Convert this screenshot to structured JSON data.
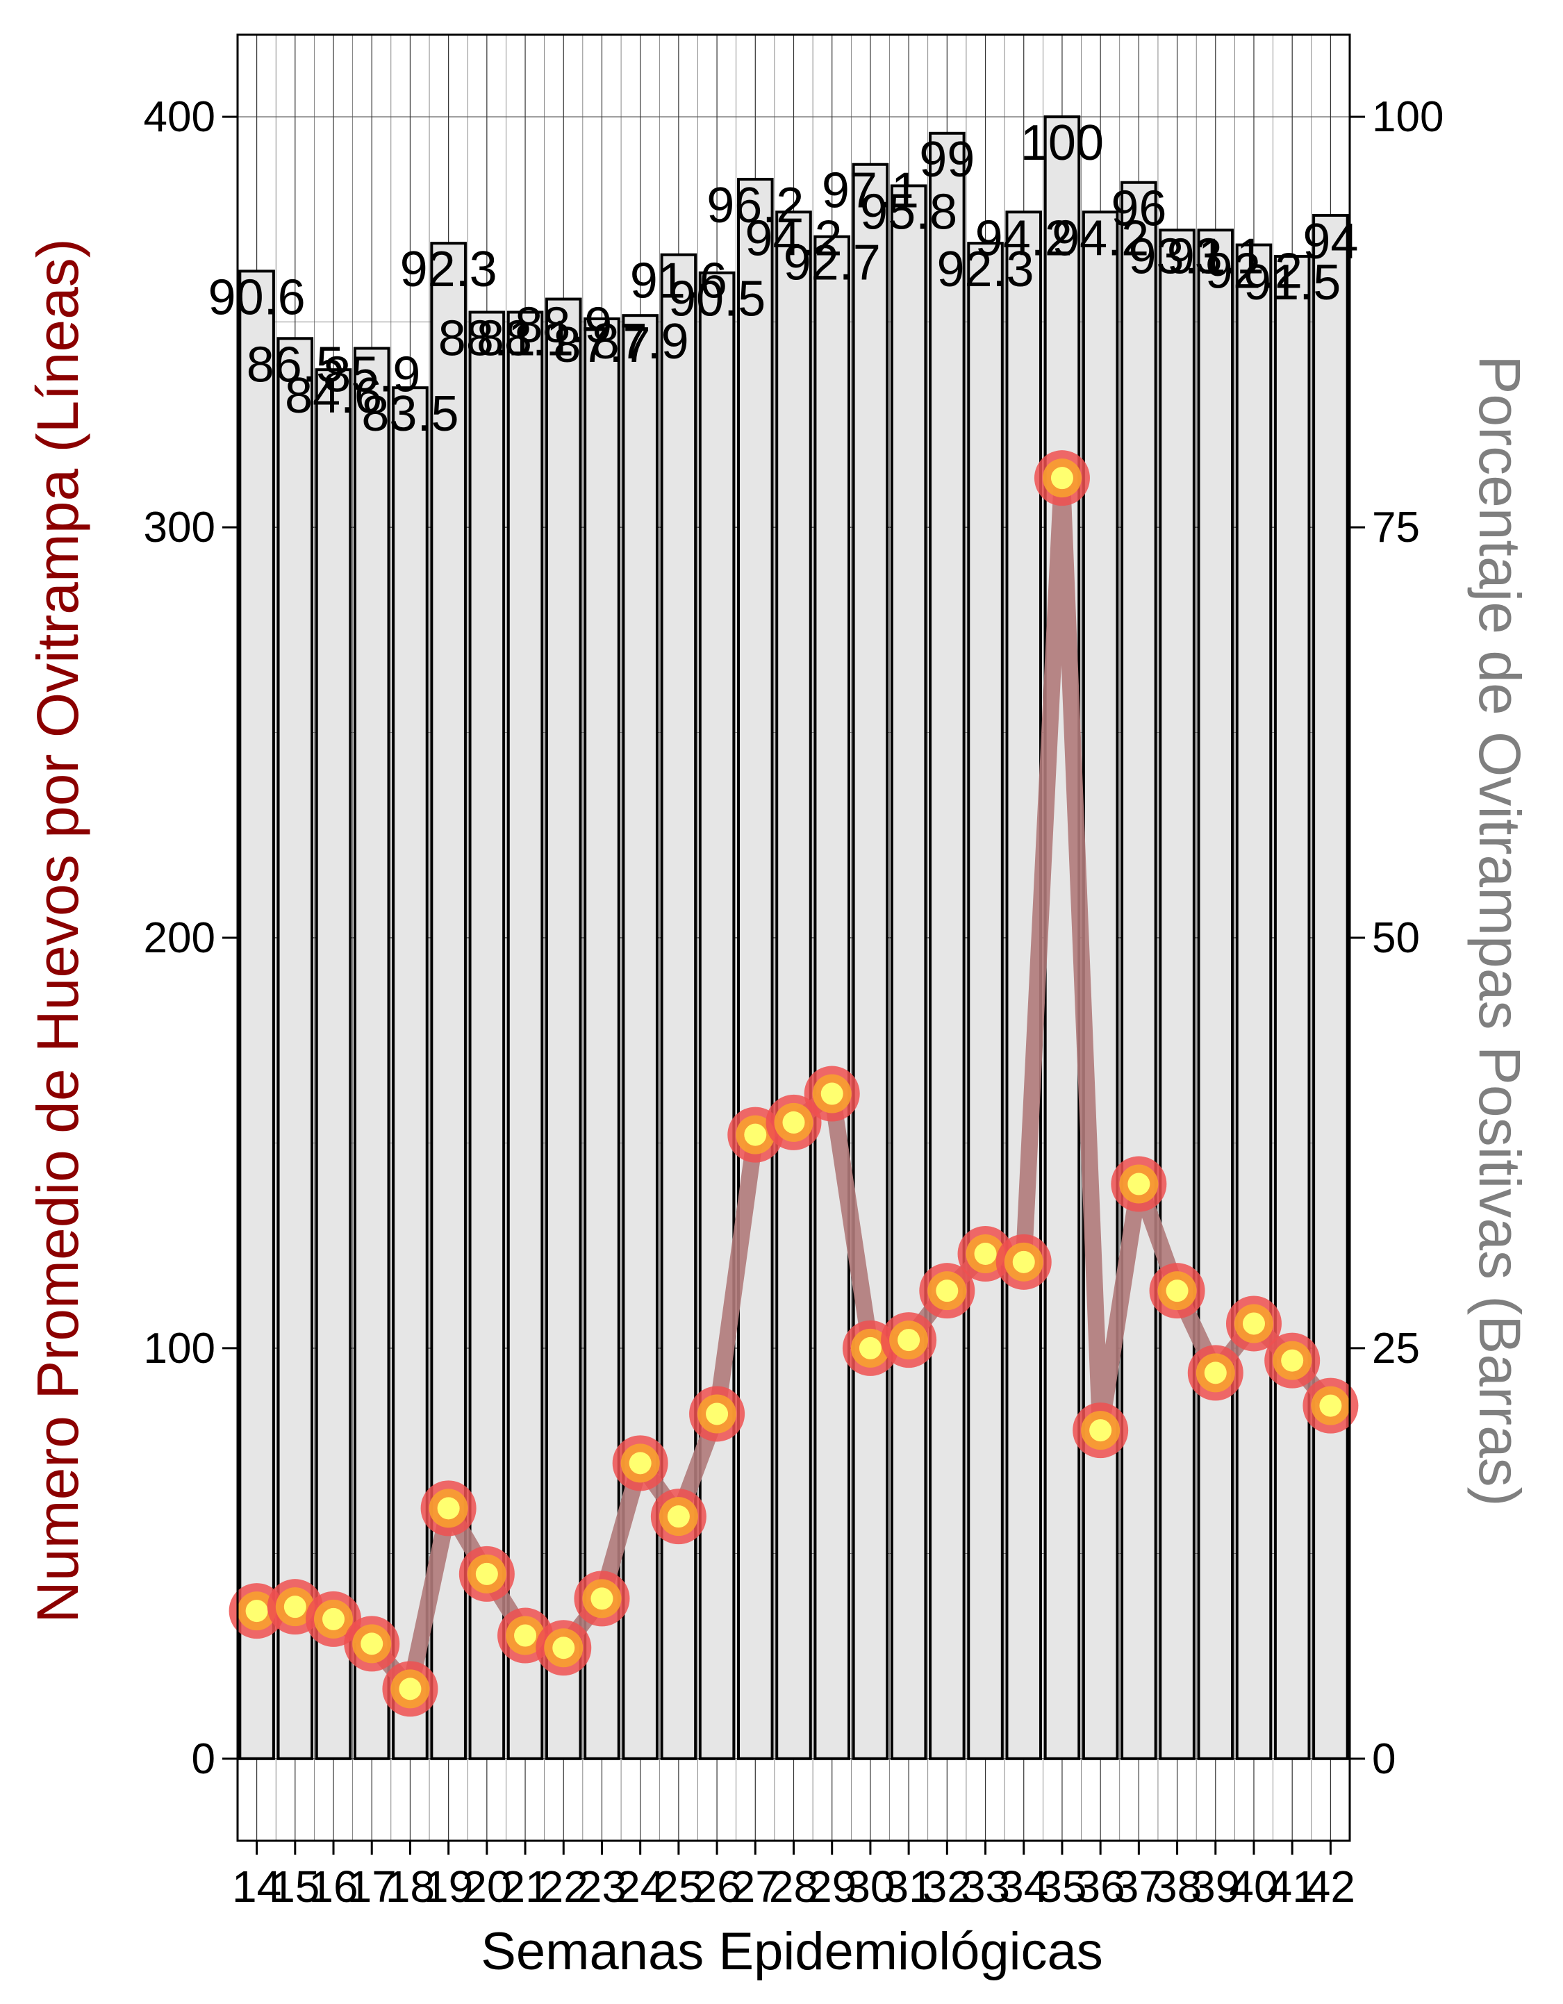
{
  "chart_data": {
    "type": "bar+line",
    "xlabel": "Semanas Epidemiológicas",
    "ylabel_left": "Numero Promedio de Huevos por Ovitrampa (Líneas)",
    "ylabel_right": "Porcentaje de Ovitrampas Positivas (Barras)",
    "categories": [
      "14",
      "15",
      "16",
      "17",
      "18",
      "19",
      "20",
      "21",
      "22",
      "23",
      "24",
      "25",
      "26",
      "27",
      "28",
      "29",
      "30",
      "31",
      "32",
      "33",
      "34",
      "35",
      "36",
      "37",
      "38",
      "39",
      "40",
      "41",
      "42"
    ],
    "left_axis": {
      "ylim": [
        -20,
        420
      ],
      "ticks": [
        0,
        100,
        200,
        300,
        400
      ]
    },
    "right_axis": {
      "ylim": [
        -5,
        105
      ],
      "ticks": [
        0,
        25,
        50,
        75,
        100
      ]
    },
    "grid": true,
    "series": [
      {
        "type": "bar",
        "axis": "right",
        "values": [
          90.6,
          86.5,
          84.6,
          85.9,
          83.5,
          92.3,
          88.1,
          88.1,
          88.9,
          87.7,
          87.9,
          91.6,
          90.5,
          96.2,
          94.2,
          92.7,
          97.1,
          95.8,
          99,
          92.3,
          94.2,
          100,
          94.2,
          96,
          93.1,
          93.1,
          92.2,
          91.5,
          94
        ],
        "labels": [
          "90.6",
          "86.5",
          "84.6",
          "85.9",
          "83.5",
          "92.3",
          "88.1",
          "88.1",
          "88.9",
          "87.7",
          "87.9",
          "91.6",
          "90.5",
          "96.2",
          "94.2",
          "92.7",
          "97.1",
          "95.8",
          "99",
          "92.3",
          "94.2",
          "100",
          "94.2",
          "96",
          "93.1",
          "93.1",
          "92.2",
          "91.5",
          "94"
        ]
      },
      {
        "type": "line",
        "axis": "left",
        "values": [
          36,
          37,
          34,
          28,
          17,
          61,
          45,
          30,
          27,
          39,
          72,
          59,
          84,
          152,
          155,
          162,
          100,
          102,
          114,
          123,
          121,
          312,
          80,
          140,
          114,
          94,
          106,
          97,
          86
        ]
      }
    ],
    "colors": {
      "bar_fill": "#e6e6e6",
      "bar_stroke": "#000000",
      "line": "#b07a7a",
      "marker_outer": "#ee5050",
      "marker_mid": "#f7a030",
      "marker_inner": "#ffff70",
      "left_title": "#8b0000",
      "right_title": "#7f7f7f"
    }
  }
}
